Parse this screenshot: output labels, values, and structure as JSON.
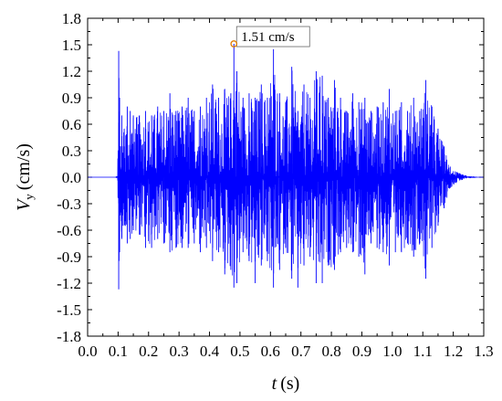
{
  "chart_data": {
    "type": "line",
    "title": "",
    "x_axis": {
      "symbol": "t",
      "unit": "(s)",
      "range": [
        0.0,
        1.3
      ],
      "ticks": [
        "0.0",
        "0.1",
        "0.2",
        "0.3",
        "0.4",
        "0.5",
        "0.6",
        "0.7",
        "0.8",
        "0.9",
        "1.0",
        "1.1",
        "1.2",
        "1.3"
      ]
    },
    "y_axis": {
      "symbol": "V",
      "subscript": "y",
      "unit": "(cm/s)",
      "range": [
        -1.8,
        1.8
      ],
      "ticks": [
        "1.8",
        "1.5",
        "1.2",
        "0.9",
        "0.6",
        "0.3",
        "0.0",
        "-0.3",
        "-0.6",
        "-0.9",
        "-1.2",
        "-1.5",
        "-1.8"
      ]
    },
    "grid": false,
    "legend": "none",
    "series": [
      {
        "color": "#0000ff",
        "x": [
          0.0,
          0.09,
          0.098,
          0.102,
          0.105,
          0.108,
          0.112,
          0.12,
          0.13,
          0.14,
          0.15,
          0.17,
          0.19,
          0.21,
          0.23,
          0.25,
          0.27,
          0.29,
          0.31,
          0.33,
          0.35,
          0.37,
          0.39,
          0.41,
          0.43,
          0.45,
          0.47,
          0.48,
          0.49,
          0.51,
          0.53,
          0.55,
          0.57,
          0.59,
          0.61,
          0.63,
          0.65,
          0.67,
          0.69,
          0.71,
          0.73,
          0.75,
          0.77,
          0.79,
          0.81,
          0.83,
          0.85,
          0.87,
          0.89,
          0.91,
          0.93,
          0.95,
          0.97,
          0.99,
          1.01,
          1.03,
          1.05,
          1.07,
          1.09,
          1.11,
          1.13,
          1.15,
          1.17,
          1.19,
          1.21,
          1.23,
          1.25,
          1.3
        ],
        "upper": [
          0.0,
          0.0,
          0.02,
          1.43,
          0.9,
          0.35,
          0.7,
          0.55,
          0.8,
          0.75,
          0.7,
          0.7,
          0.75,
          0.7,
          0.8,
          0.75,
          0.95,
          0.75,
          0.8,
          0.9,
          0.75,
          0.8,
          0.9,
          1.05,
          0.9,
          1.0,
          0.95,
          1.51,
          1.2,
          0.9,
          0.95,
          0.9,
          1.05,
          0.9,
          1.45,
          0.95,
          0.85,
          1.25,
          0.75,
          1.05,
          0.9,
          1.2,
          1.15,
          0.9,
          1.1,
          0.9,
          0.75,
          0.95,
          0.85,
          0.9,
          0.75,
          0.8,
          0.85,
          1.0,
          0.75,
          0.85,
          0.75,
          0.9,
          0.75,
          1.1,
          0.8,
          0.55,
          0.35,
          0.12,
          0.06,
          0.03,
          0.01,
          0.0
        ],
        "lower": [
          0.0,
          0.0,
          -0.02,
          -1.27,
          -0.85,
          -0.4,
          -0.7,
          -0.55,
          -0.75,
          -0.7,
          -0.6,
          -0.65,
          -0.8,
          -0.8,
          -0.7,
          -0.75,
          -0.85,
          -0.8,
          -0.8,
          -0.8,
          -0.75,
          -0.85,
          -0.8,
          -0.95,
          -0.85,
          -1.1,
          -1.05,
          -1.25,
          -1.2,
          -0.85,
          -0.95,
          -1.2,
          -1.0,
          -0.95,
          -1.25,
          -1.05,
          -0.8,
          -1.15,
          -1.25,
          -1.0,
          -0.9,
          -1.2,
          -1.2,
          -1.0,
          -1.05,
          -0.85,
          -0.8,
          -0.85,
          -0.9,
          -1.1,
          -0.75,
          -0.8,
          -0.85,
          -1.0,
          -0.85,
          -0.85,
          -0.75,
          -0.9,
          -0.75,
          -1.15,
          -0.8,
          -0.55,
          -0.35,
          -0.12,
          -0.06,
          -0.03,
          -0.01,
          0.0
        ]
      }
    ],
    "annotations": [
      {
        "x": 0.48,
        "y": 1.51,
        "text": "1.51 cm/s",
        "marker_color": "#e07b00"
      }
    ]
  }
}
